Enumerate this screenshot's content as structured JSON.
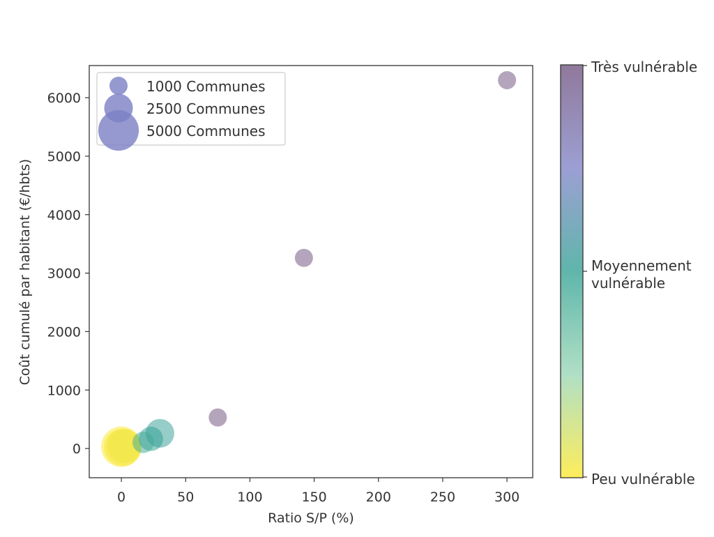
{
  "chart_data": {
    "type": "scatter",
    "title": "",
    "xlabel": "Ratio S/P (%)",
    "ylabel": "Coût cumulé par habitant (€/hbts)",
    "xlim": [
      -25,
      320
    ],
    "ylim": [
      -500,
      6550
    ],
    "xticks": [
      0,
      50,
      100,
      150,
      200,
      250,
      300
    ],
    "yticks": [
      0,
      1000,
      2000,
      3000,
      4000,
      5000,
      6000
    ],
    "grid": false,
    "points": [
      {
        "x": 0,
        "y": 30,
        "size": 5000,
        "vulnerability": 0.0
      },
      {
        "x": 1,
        "y": 20,
        "size": 4200,
        "vulnerability": 0.02
      },
      {
        "x": 2,
        "y": 40,
        "size": 3500,
        "vulnerability": 0.04
      },
      {
        "x": 17,
        "y": 105,
        "size": 1400,
        "vulnerability": 0.45
      },
      {
        "x": 23,
        "y": 165,
        "size": 1800,
        "vulnerability": 0.5
      },
      {
        "x": 30,
        "y": 260,
        "size": 2500,
        "vulnerability": 0.52
      },
      {
        "x": 75,
        "y": 530,
        "size": 1000,
        "vulnerability": 1.0
      },
      {
        "x": 142,
        "y": 3260,
        "size": 1000,
        "vulnerability": 1.0
      },
      {
        "x": 300,
        "y": 6300,
        "size": 1000,
        "vulnerability": 1.0
      }
    ],
    "legend": {
      "placement": "top-left",
      "entries": [
        {
          "label": "1000 Communes",
          "size": 1000
        },
        {
          "label": "2500 Communes",
          "size": 2500
        },
        {
          "label": "5000 Communes",
          "size": 5000
        }
      ],
      "color": "#7b7fc4"
    },
    "colorbar": {
      "labels": {
        "top": "Très vulnérable",
        "middle_line1": "Moyennement",
        "middle_line2": "vulnérable",
        "bottom": "Peu vulnérable"
      },
      "colors": [
        "#fde725",
        "#95d5b2",
        "#2a9d8f",
        "#7b7fc4",
        "#6b4c7a"
      ]
    }
  }
}
